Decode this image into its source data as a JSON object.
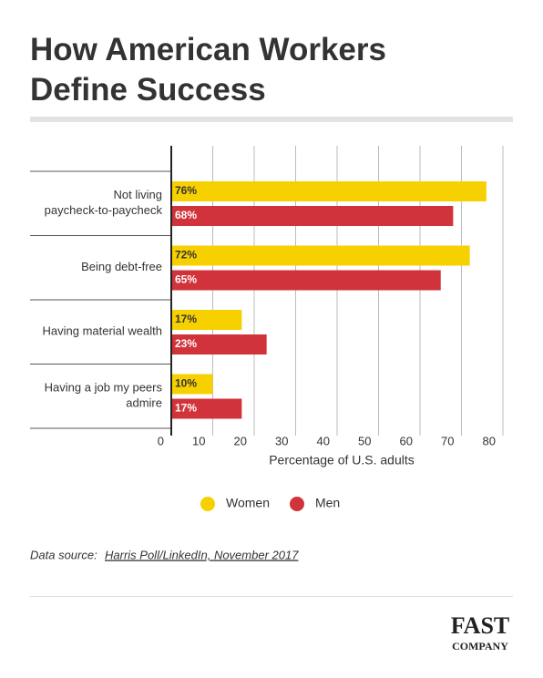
{
  "chart_data": {
    "type": "bar",
    "orientation": "horizontal",
    "title_lines": [
      "How American Workers",
      "Define Success"
    ],
    "categories": [
      "Not living paycheck-to-paycheck",
      "Being debt-free",
      "Having material wealth",
      "Having a job my peers admire"
    ],
    "series": [
      {
        "name": "Women",
        "color": "#f7d000",
        "values": [
          76,
          72,
          17,
          10
        ],
        "value_labels": [
          "76%",
          "72%",
          "17%",
          "10%"
        ]
      },
      {
        "name": "Men",
        "color": "#d1333a",
        "values": [
          68,
          65,
          23,
          17
        ],
        "value_labels": [
          "68%",
          "65%",
          "23%",
          "17%"
        ]
      }
    ],
    "xlabel": "Percentage of U.S. adults",
    "xlim": [
      0,
      80
    ],
    "xticks": [
      0,
      10,
      20,
      30,
      40,
      50,
      60,
      70,
      80
    ],
    "grid": true,
    "source_label": "Data source:",
    "source_link": "Harris Poll/LinkedIn, November 2017",
    "logo_lines": [
      "FAST",
      "COMPANY"
    ]
  }
}
